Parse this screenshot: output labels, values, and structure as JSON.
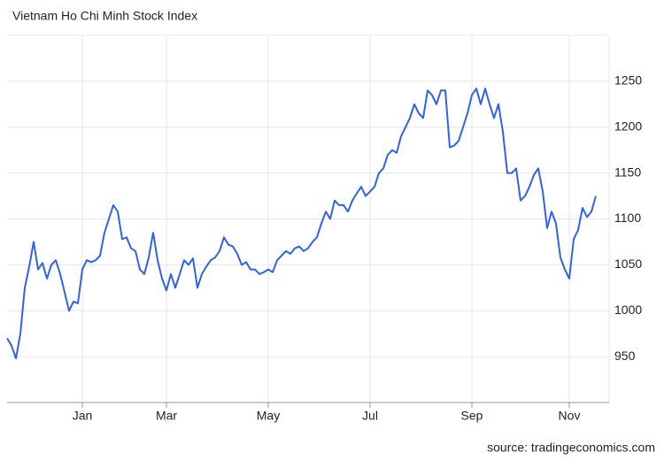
{
  "chart_data": {
    "type": "line",
    "title": "Vietnam Ho Chi Minh Stock Index",
    "source": "source: tradingeconomics.com",
    "categories": [
      null,
      null,
      null,
      null,
      null,
      null,
      null,
      null,
      null,
      null,
      null,
      null,
      null,
      null,
      null,
      null,
      null,
      "Jan",
      null,
      null,
      null,
      null,
      null,
      null,
      null,
      null,
      null,
      null,
      null,
      null,
      null,
      null,
      null,
      null,
      null,
      null,
      "Mar",
      null,
      null,
      null,
      null,
      null,
      null,
      null,
      null,
      null,
      null,
      null,
      null,
      null,
      null,
      null,
      null,
      null,
      null,
      null,
      null,
      null,
      null,
      "May",
      null,
      null,
      null,
      null,
      null,
      null,
      null,
      null,
      null,
      null,
      null,
      null,
      null,
      null,
      null,
      null,
      null,
      null,
      null,
      null,
      null,
      null,
      "Jul",
      null,
      null,
      null,
      null,
      null,
      null,
      null,
      null,
      null,
      null,
      null,
      null,
      null,
      null,
      null,
      null,
      null,
      null,
      null,
      null,
      null,
      null,
      "Sep",
      null,
      null,
      null,
      null,
      null,
      null,
      null,
      null,
      null,
      null,
      null,
      null,
      null,
      null,
      null,
      null,
      null,
      null,
      null,
      null,
      null,
      "Nov",
      null,
      null,
      null,
      null,
      null,
      null
    ],
    "values": [
      970,
      962,
      948,
      975,
      1025,
      1048,
      1075,
      1045,
      1052,
      1035,
      1050,
      1055,
      1040,
      1020,
      1000,
      1010,
      1008,
      1045,
      1055,
      1053,
      1055,
      1060,
      1085,
      1100,
      1115,
      1108,
      1078,
      1080,
      1068,
      1065,
      1045,
      1040,
      1058,
      1085,
      1055,
      1035,
      1022,
      1040,
      1025,
      1040,
      1055,
      1050,
      1057,
      1025,
      1040,
      1048,
      1055,
      1058,
      1065,
      1080,
      1072,
      1070,
      1062,
      1050,
      1053,
      1045,
      1045,
      1040,
      1042,
      1045,
      1042,
      1055,
      1060,
      1065,
      1062,
      1068,
      1070,
      1065,
      1068,
      1075,
      1080,
      1095,
      1108,
      1100,
      1120,
      1115,
      1115,
      1108,
      1120,
      1128,
      1135,
      1125,
      1130,
      1135,
      1150,
      1155,
      1170,
      1175,
      1172,
      1190,
      1200,
      1210,
      1225,
      1215,
      1210,
      1240,
      1235,
      1225,
      1240,
      1240,
      1178,
      1180,
      1185,
      1200,
      1215,
      1235,
      1242,
      1225,
      1242,
      1225,
      1210,
      1225,
      1195,
      1150,
      1150,
      1155,
      1120,
      1125,
      1135,
      1148,
      1155,
      1130,
      1090,
      1108,
      1095,
      1058,
      1045,
      1035,
      1078,
      1088,
      1112,
      1102,
      1108,
      1125
    ],
    "color": "#2f62e8",
    "ylim": [
      900,
      1300
    ],
    "yticks": [
      950,
      1000,
      1050,
      1100,
      1150,
      1200,
      1250
    ],
    "grid": true
  }
}
